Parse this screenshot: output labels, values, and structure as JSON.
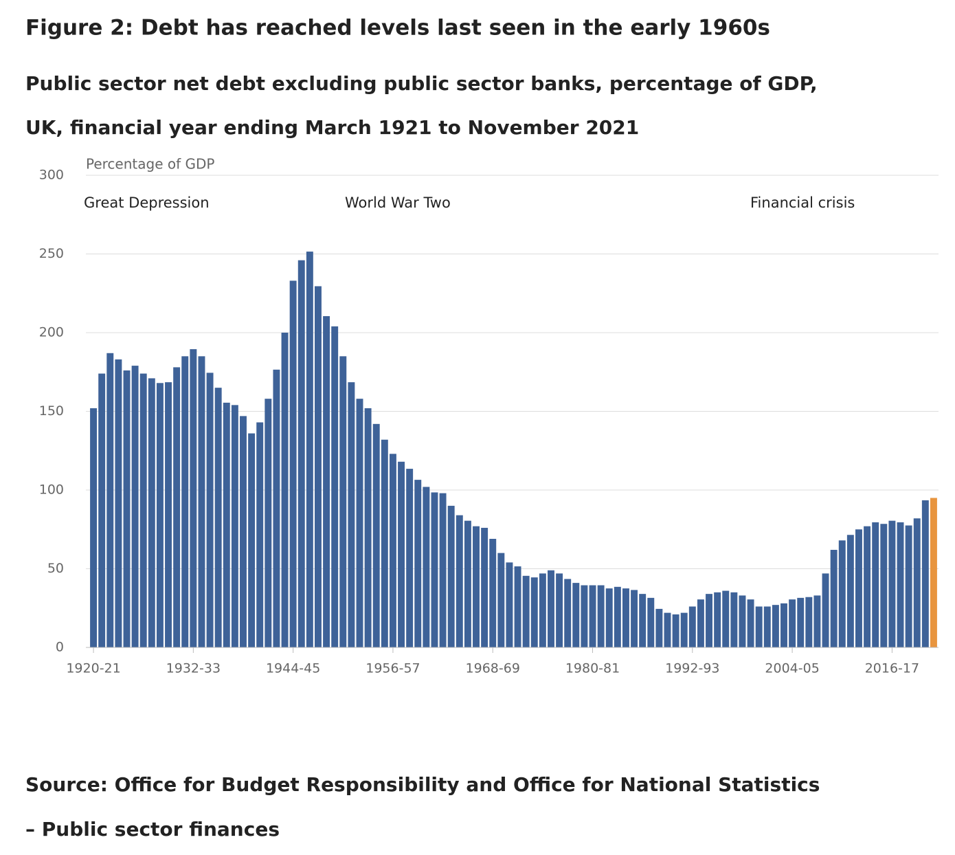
{
  "chart_data": {
    "type": "bar",
    "title": "Figure 2: Debt has reached levels last seen in the early 1960s",
    "subtitle": [
      "Public sector net debt excluding public sector banks, percentage of GDP,",
      "UK, financial year ending March 1921 to November 2021"
    ],
    "y_label": "Percentage of GDP",
    "annotations": [
      "Great Depression",
      "World War Two",
      "Financial crisis"
    ],
    "source": [
      "Source: Office for Budget Responsibility and Office for National Statistics",
      "– Public sector finances"
    ],
    "categories": [
      "1920-21",
      null,
      null,
      null,
      null,
      null,
      null,
      null,
      null,
      null,
      null,
      null,
      "1932-33",
      null,
      null,
      null,
      null,
      null,
      null,
      null,
      null,
      null,
      null,
      null,
      "1944-45",
      null,
      null,
      null,
      null,
      null,
      null,
      null,
      null,
      null,
      null,
      null,
      "1956-57",
      null,
      null,
      null,
      null,
      null,
      null,
      null,
      null,
      null,
      null,
      null,
      "1968-69",
      null,
      null,
      null,
      null,
      null,
      null,
      null,
      null,
      null,
      null,
      null,
      "1980-81",
      null,
      null,
      null,
      null,
      null,
      null,
      null,
      null,
      null,
      null,
      null,
      "1992-93",
      null,
      null,
      null,
      null,
      null,
      null,
      null,
      null,
      null,
      null,
      null,
      "2004-05",
      null,
      null,
      null,
      null,
      null,
      null,
      null,
      null,
      null,
      null,
      null,
      "2016-17",
      null,
      null,
      null,
      null,
      null
    ],
    "values": [
      152,
      174,
      187,
      183,
      176,
      179,
      174,
      171,
      168,
      168.5,
      178,
      185,
      189.5,
      185,
      174.5,
      165,
      155.5,
      154,
      147,
      136,
      143,
      158,
      176.5,
      200,
      233,
      246,
      251.5,
      229.5,
      210.5,
      204,
      185,
      168.5,
      158,
      152,
      142,
      132,
      123,
      118,
      113.5,
      106.5,
      102,
      98.5,
      98,
      90,
      84,
      80.5,
      77,
      76,
      69,
      60,
      54,
      51.5,
      45.5,
      44.5,
      47,
      49,
      47,
      43.5,
      41,
      39.5,
      39.5,
      39.5,
      37.5,
      38.5,
      37.5,
      36.5,
      34,
      31.5,
      24.5,
      22,
      21,
      22,
      26,
      30.5,
      34,
      35,
      36,
      35,
      33,
      30.5,
      26,
      26,
      27,
      28,
      30.5,
      31.5,
      32,
      33,
      47,
      62,
      68,
      71.5,
      75,
      77,
      79.5,
      78.5,
      80.5,
      79.5,
      77.5,
      82,
      93.5,
      95
    ],
    "color": "#3e6298",
    "last_color": "#e8953f",
    "ylim": [
      0,
      300
    ],
    "yticks": [
      0,
      50,
      100,
      150,
      200,
      250,
      300
    ],
    "grid": true
  }
}
